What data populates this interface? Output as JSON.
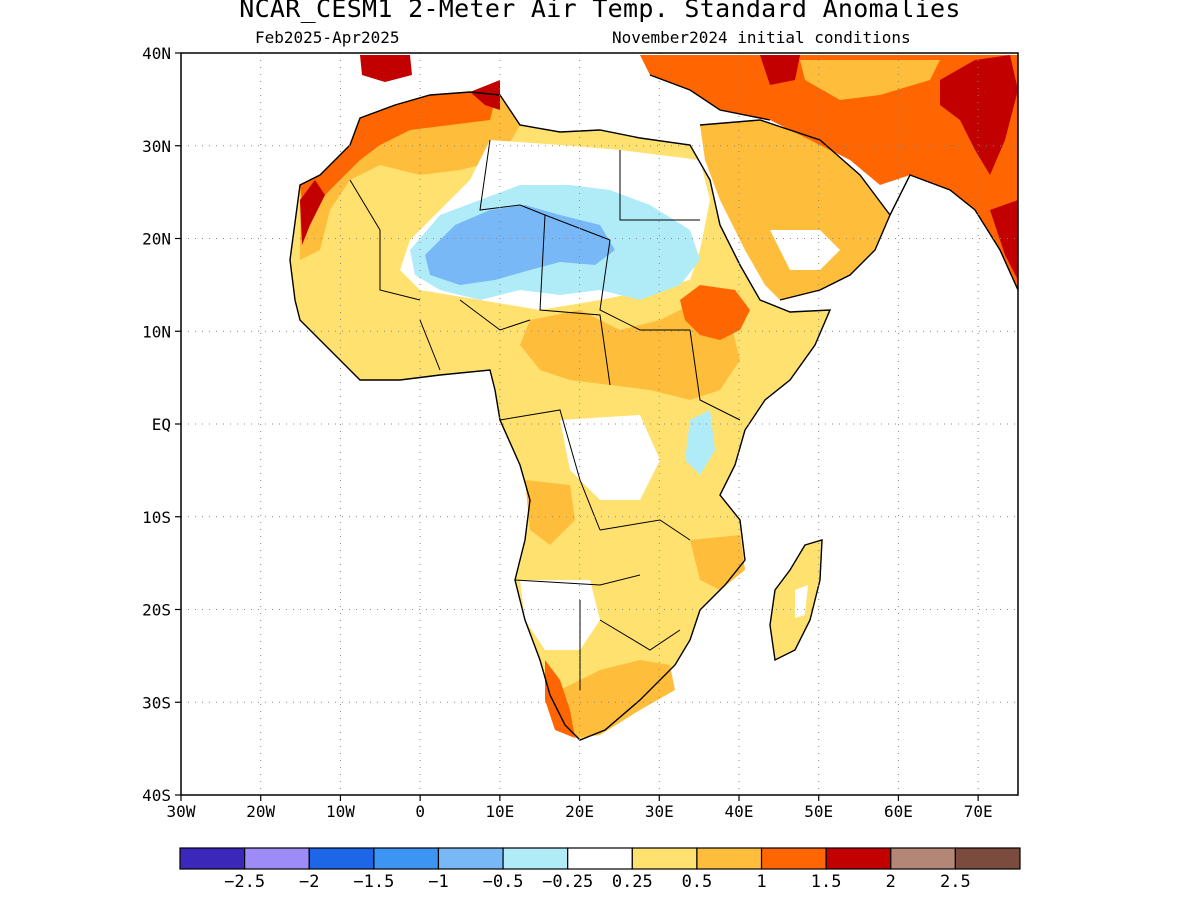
{
  "title": "NCAR_CESM1 2-Meter Air Temp. Standard Anomalies",
  "subtitle_left": "Feb2025-Apr2025",
  "subtitle_right": "November2024 initial conditions",
  "map": {
    "lat_labels": [
      "40N",
      "30N",
      "20N",
      "10N",
      "EQ",
      "10S",
      "20S",
      "30S",
      "40S"
    ],
    "lat_values": [
      40,
      30,
      20,
      10,
      0,
      -10,
      -20,
      -30,
      -40
    ],
    "lon_labels": [
      "30W",
      "20W",
      "10W",
      "0",
      "10E",
      "20E",
      "30E",
      "40E",
      "50E",
      "60E",
      "70E"
    ],
    "lon_values": [
      -30,
      -20,
      -10,
      0,
      10,
      20,
      30,
      40,
      50,
      60,
      70
    ],
    "extent": {
      "lon_min": -30,
      "lon_max": 75,
      "lat_min": -40,
      "lat_max": 40
    },
    "grid": "dotted"
  },
  "colorbar": {
    "colors": [
      "#3b27b9",
      "#9d8cf7",
      "#1d66e8",
      "#3c95f3",
      "#78b8f7",
      "#b0ecf8",
      "#ffffff",
      "#ffe16f",
      "#ffbd3c",
      "#ff6500",
      "#c20000",
      "#b48676",
      "#7b4c3e"
    ],
    "labels": [
      "-2.5",
      "-2",
      "-1.5",
      "-1",
      "-0.5",
      "-0.25",
      "0.25",
      "0.5",
      "1",
      "1.5",
      "2",
      "2.5"
    ]
  }
}
